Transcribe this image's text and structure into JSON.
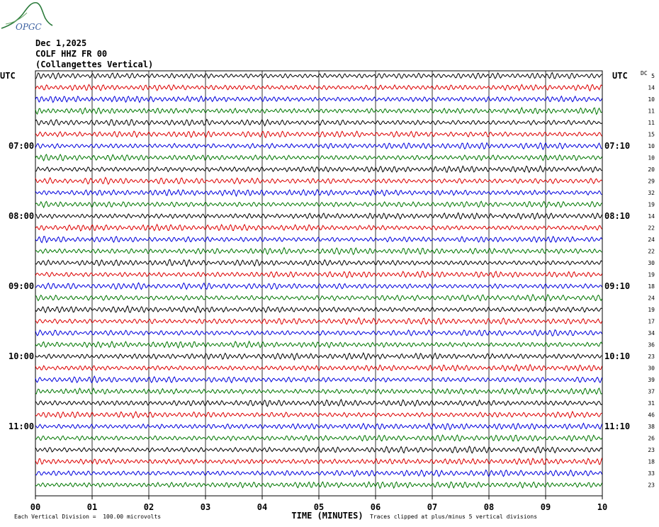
{
  "header": {
    "date": "Dec 1,2025",
    "station": "COLF HHZ FR 00",
    "location": "(Collangettes Vertical)",
    "logo_text": "OPGC"
  },
  "chart_data": {
    "type": "line",
    "title": "Dec 1,2025",
    "left_axis_label": "UTC",
    "right_axis_label": "UTC",
    "dc_label": "DC",
    "xlabel": "TIME (MINUTES)",
    "x_ticks": [
      "00",
      "01",
      "02",
      "03",
      "04",
      "05",
      "06",
      "07",
      "08",
      "09",
      "10"
    ],
    "xlim": [
      0,
      10
    ],
    "left_hour_labels": [
      {
        "row": 6,
        "text": "07:00"
      },
      {
        "row": 12,
        "text": "08:00"
      },
      {
        "row": 18,
        "text": "09:00"
      },
      {
        "row": 24,
        "text": "10:00"
      },
      {
        "row": 30,
        "text": "11:00"
      }
    ],
    "right_hour_labels": [
      {
        "row": 6,
        "text": "07:10"
      },
      {
        "row": 12,
        "text": "08:10"
      },
      {
        "row": 18,
        "text": "09:10"
      },
      {
        "row": 24,
        "text": "10:10"
      },
      {
        "row": 30,
        "text": "11:10"
      }
    ],
    "trace_colors": [
      "#000000",
      "#dd0000",
      "#0000dd",
      "#007700"
    ],
    "dc_offsets": [
      "5",
      "14",
      "10",
      "11",
      "11",
      "15",
      "10",
      "10",
      "20",
      "29",
      "32",
      "19",
      "14",
      "22",
      "24",
      "22",
      "30",
      "19",
      "18",
      "24",
      "19",
      "17",
      "34",
      "36",
      "23",
      "30",
      "39",
      "37",
      "31",
      "46",
      "38",
      "26",
      "23",
      "18",
      "33",
      "23"
    ],
    "grid": true,
    "footer_left": "Each Vertical Division =  100.00 microvolts",
    "footer_right": "Traces clipped at plus/minus 5 vertical divisions"
  }
}
